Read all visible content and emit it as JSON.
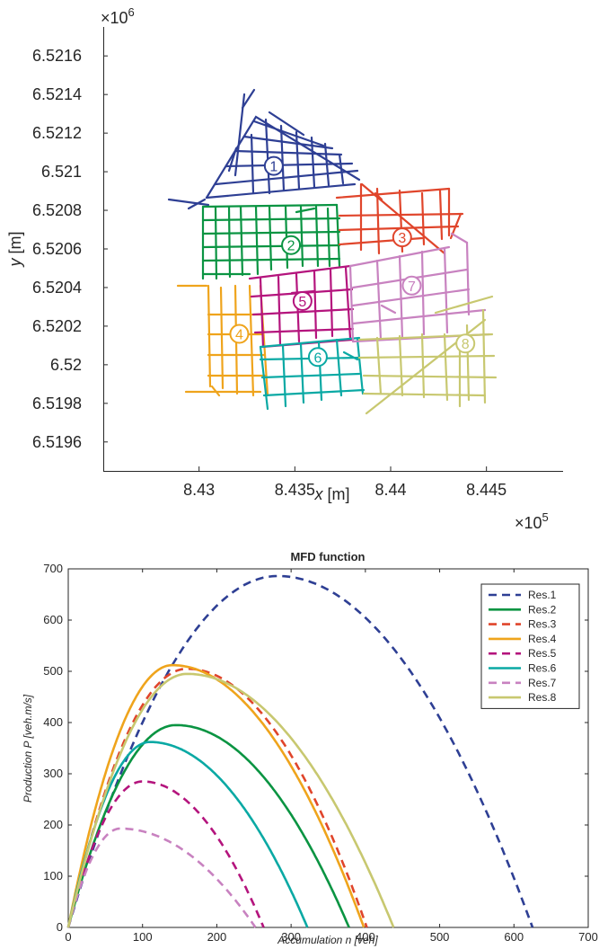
{
  "chart_data": [
    {
      "type": "network_map",
      "xlabel_var": "x",
      "xlabel_unit": " [m]",
      "ylabel_var": "y",
      "ylabel_unit": " [m]",
      "x_exponent": "×10",
      "x_exponent_power": "5",
      "y_exponent": "×10",
      "y_exponent_power": "6",
      "xlim": [
        8.425,
        8.449
      ],
      "ylim": [
        6.51945,
        6.52175
      ],
      "xticks": [
        "8.43",
        "8.435",
        "8.44",
        "8.445"
      ],
      "yticks": [
        "6.5196",
        "6.5198",
        "6.52",
        "6.5202",
        "6.5204",
        "6.5206",
        "6.5208",
        "6.521",
        "6.5212",
        "6.5214",
        "6.5216"
      ],
      "regions": [
        {
          "label": "1",
          "color": "#2e3f94",
          "x": 8.4339,
          "y": 6.52103
        },
        {
          "label": "2",
          "color": "#0a9442",
          "x": 8.4348,
          "y": 6.52062
        },
        {
          "label": "3",
          "color": "#e0452b",
          "x": 8.4406,
          "y": 6.52066
        },
        {
          "label": "4",
          "color": "#efa41c",
          "x": 8.4321,
          "y": 6.52016
        },
        {
          "label": "5",
          "color": "#b4147d",
          "x": 8.4354,
          "y": 6.52033
        },
        {
          "label": "6",
          "color": "#0aa9a4",
          "x": 8.4362,
          "y": 6.52004
        },
        {
          "label": "7",
          "color": "#c882c0",
          "x": 8.4411,
          "y": 6.52041
        },
        {
          "label": "8",
          "color": "#c8c870",
          "x": 8.4439,
          "y": 6.52011
        }
      ]
    },
    {
      "type": "line",
      "title": "MFD function",
      "xlabel": "Accumulation n [veh]",
      "ylabel": "Production P [veh.m/s]",
      "xlim": [
        0,
        700
      ],
      "ylim": [
        0,
        700
      ],
      "xticks": [
        "0",
        "100",
        "200",
        "300",
        "400",
        "500",
        "600",
        "700"
      ],
      "yticks": [
        "0",
        "100",
        "200",
        "300",
        "400",
        "500",
        "600",
        "700"
      ],
      "legend_position": "top-right",
      "series": [
        {
          "name": "Res.1",
          "color": "#2e3f94",
          "dashed": true,
          "n_max": 625,
          "p_max": 686,
          "n_peak": 282
        },
        {
          "name": "Res.2",
          "color": "#0a9442",
          "dashed": false,
          "n_max": 378,
          "p_max": 395,
          "n_peak": 145
        },
        {
          "name": "Res.3",
          "color": "#e0452b",
          "dashed": true,
          "n_max": 402,
          "p_max": 505,
          "n_peak": 160
        },
        {
          "name": "Res.4",
          "color": "#efa41c",
          "dashed": false,
          "n_max": 398,
          "p_max": 512,
          "n_peak": 140
        },
        {
          "name": "Res.5",
          "color": "#b4147d",
          "dashed": true,
          "n_max": 263,
          "p_max": 285,
          "n_peak": 100
        },
        {
          "name": "Res.6",
          "color": "#0aa9a4",
          "dashed": false,
          "n_max": 322,
          "p_max": 362,
          "n_peak": 110
        },
        {
          "name": "Res.7",
          "color": "#c882c0",
          "dashed": true,
          "n_max": 252,
          "p_max": 193,
          "n_peak": 70
        },
        {
          "name": "Res.8",
          "color": "#c8c870",
          "dashed": false,
          "n_max": 438,
          "p_max": 495,
          "n_peak": 160
        }
      ]
    }
  ]
}
